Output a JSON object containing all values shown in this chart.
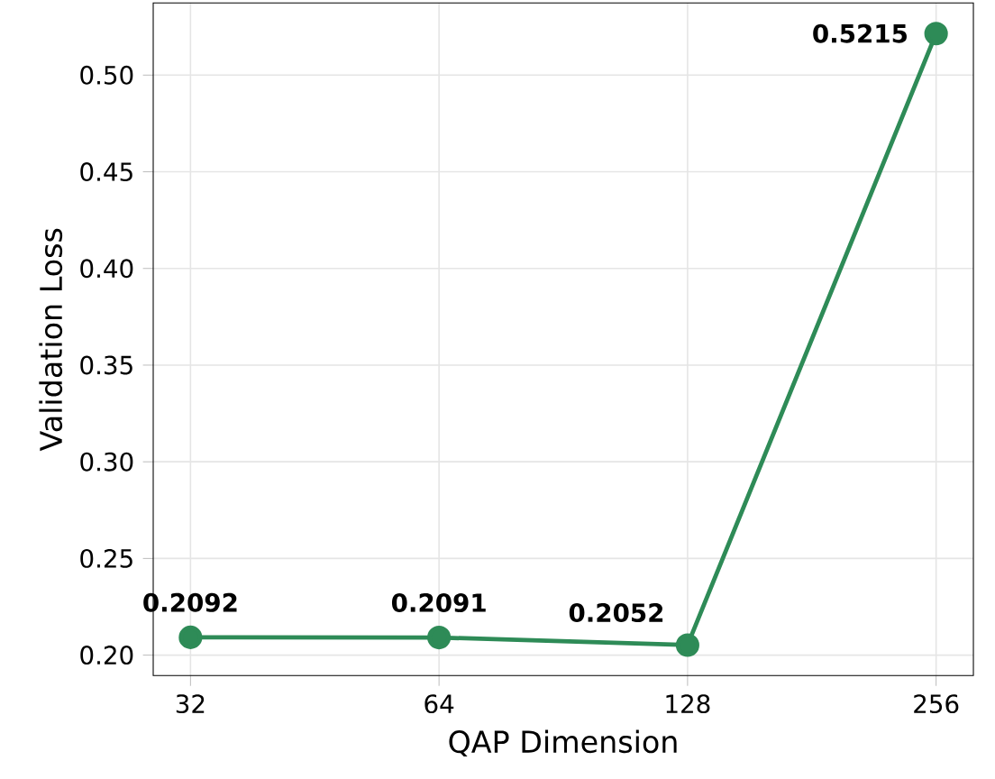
{
  "chart_data": {
    "type": "line",
    "xlabel": "QAP Dimension",
    "ylabel": "Validation Loss",
    "categories": [
      "32",
      "64",
      "128",
      "256"
    ],
    "series": [
      {
        "color": "#2e8b57",
        "values": [
          0.2092,
          0.2091,
          0.2052,
          0.5215
        ]
      }
    ],
    "ylim": [
      0.1894,
      0.5373
    ],
    "yticks": [
      {
        "value": 0.2,
        "label": "0.20"
      },
      0.25,
      {
        "value": 0.3,
        "label": "0.30"
      },
      0.35,
      {
        "value": 0.4,
        "label": "0.40"
      },
      0.45,
      {
        "value": 0.5,
        "label": "0.50"
      }
    ],
    "grid": true,
    "marker": "circle",
    "line_style": "solid",
    "data_labels": true
  }
}
